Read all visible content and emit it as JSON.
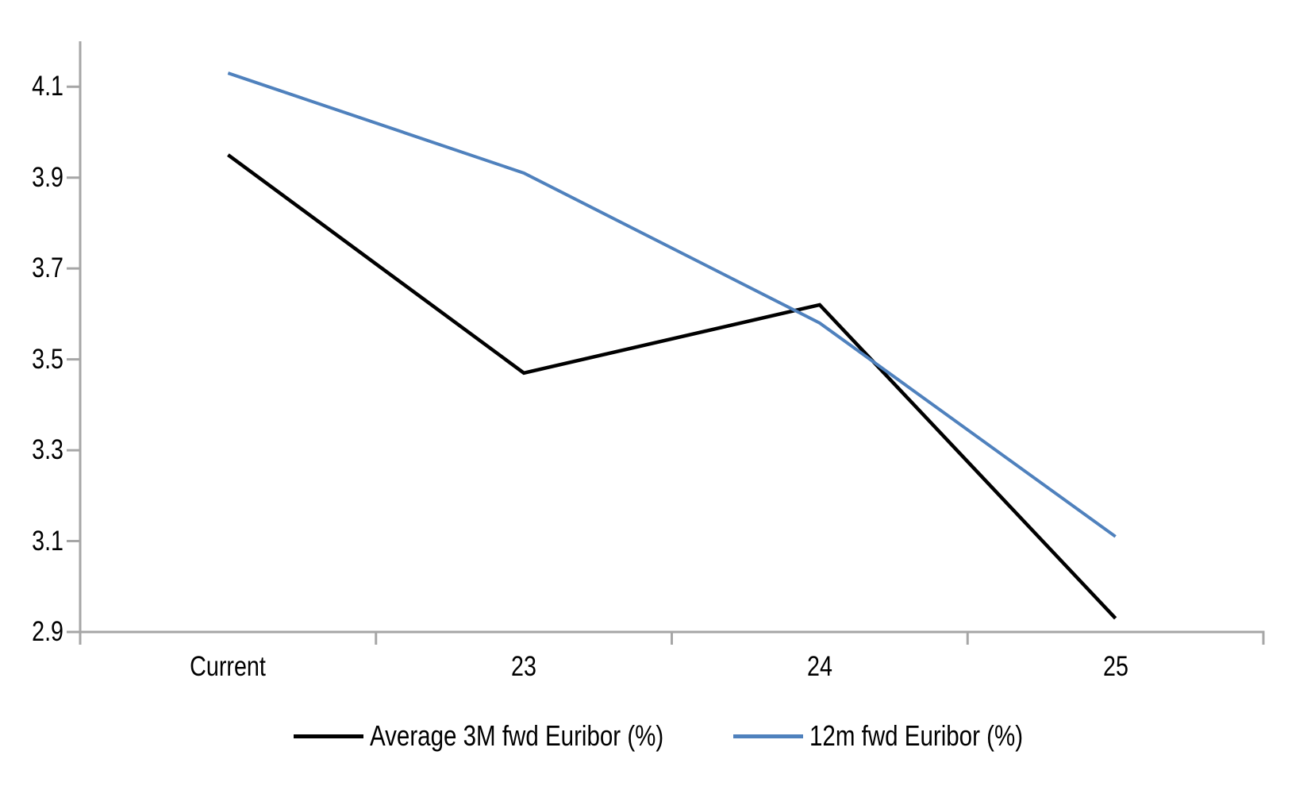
{
  "chart_data": {
    "type": "line",
    "categories": [
      "Current",
      "23",
      "24",
      "25"
    ],
    "series": [
      {
        "name": "Average 3M fwd Euribor (%)",
        "color": "#000000",
        "values": [
          3.95,
          3.47,
          3.62,
          2.93
        ]
      },
      {
        "name": "12m fwd Euribor (%)",
        "color": "#4F81BD",
        "values": [
          4.13,
          3.91,
          3.58,
          3.11
        ]
      }
    ],
    "y_ticks": [
      4.1,
      3.9,
      3.7,
      3.5,
      3.3,
      3.1,
      2.9
    ],
    "y_tick_labels": [
      "4.1",
      "3.9",
      "3.7",
      "3.5",
      "3.3",
      "3.1",
      "2.9"
    ],
    "ylim": [
      2.9,
      4.2
    ],
    "grid": false,
    "legend_position": "bottom",
    "axis_color": "#A6A6A6",
    "background_color": "#FFFFFF"
  }
}
